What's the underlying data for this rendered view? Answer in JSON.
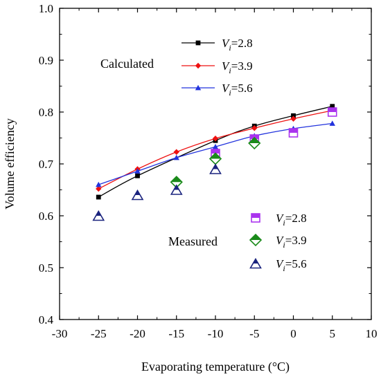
{
  "chart_data": {
    "type": "line",
    "xlabel": "Evaporating temperature (°C)",
    "ylabel": "Volume efficiency",
    "xlim": [
      -30,
      10
    ],
    "ylim": [
      0.4,
      1.0
    ],
    "x_ticks": [
      -30,
      -25,
      -20,
      -15,
      -10,
      -5,
      0,
      5,
      10
    ],
    "y_ticks": [
      0.4,
      0.5,
      0.6,
      0.7,
      0.8,
      0.9,
      1.0
    ],
    "y_tick_labels": [
      "0.4",
      "0.5",
      "0.6",
      "0.7",
      "0.8",
      "0.9",
      "1.0"
    ],
    "grid": false,
    "groups": {
      "calculated_label": "Calculated",
      "measured_label": "Measured"
    },
    "calculated": [
      {
        "name_prefix": "V",
        "name_sub": "i",
        "name_value": "=2.8",
        "color": "#000000",
        "marker": "square",
        "x": [
          -25,
          -20,
          -10,
          -5,
          0,
          5
        ],
        "y": [
          0.636,
          0.677,
          0.745,
          0.773,
          0.793,
          0.811
        ]
      },
      {
        "name_prefix": "V",
        "name_sub": "i",
        "name_value": "=3.9",
        "color": "#ee1111",
        "marker": "diamond",
        "x": [
          -25,
          -20,
          -15,
          -10,
          -5,
          0,
          5
        ],
        "y": [
          0.652,
          0.69,
          0.723,
          0.749,
          0.769,
          0.787,
          0.803
        ]
      },
      {
        "name_prefix": "V",
        "name_sub": "i",
        "name_value": "=5.6",
        "color": "#2233dd",
        "marker": "triangle",
        "x": [
          -25,
          -20,
          -15,
          -10,
          -5,
          0,
          5
        ],
        "y": [
          0.66,
          0.686,
          0.712,
          0.733,
          0.754,
          0.768,
          0.778
        ]
      }
    ],
    "measured": [
      {
        "name_prefix": "V",
        "name_sub": "i",
        "name_value": "=2.8",
        "color": "#aa33ee",
        "marker": "half-square",
        "x": [
          -10,
          -5,
          0,
          5
        ],
        "y": [
          0.72,
          0.748,
          0.76,
          0.8
        ]
      },
      {
        "name_prefix": "V",
        "name_sub": "i",
        "name_value": "=3.9",
        "color": "#1a8a1a",
        "marker": "half-diamond",
        "x": [
          -15,
          -10,
          -5
        ],
        "y": [
          0.665,
          0.71,
          0.74
        ]
      },
      {
        "name_prefix": "V",
        "name_sub": "i",
        "name_value": "=5.6",
        "color": "#1a237e",
        "marker": "half-triangle",
        "x": [
          -25,
          -20,
          -15,
          -10
        ],
        "y": [
          0.6,
          0.64,
          0.65,
          0.69
        ]
      }
    ]
  }
}
